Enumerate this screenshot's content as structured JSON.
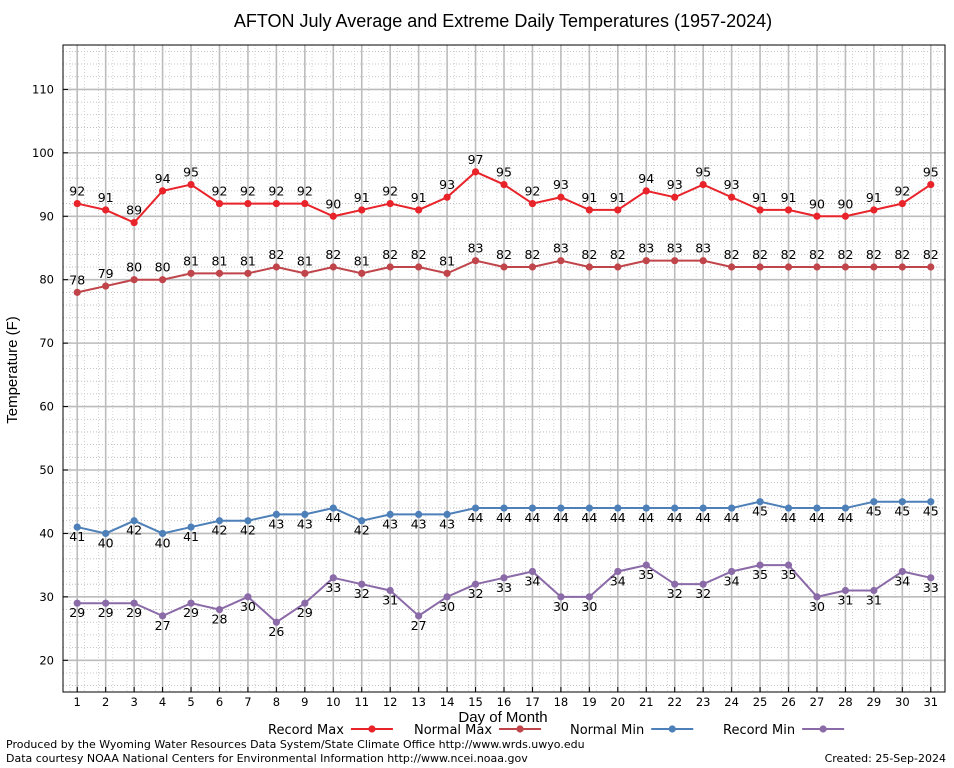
{
  "chart_data": {
    "type": "line",
    "title": "AFTON July Average and Extreme Daily Temperatures (1957-2024)",
    "xlabel": "Day of Month",
    "ylabel": "Temperature (F)",
    "x": [
      1,
      2,
      3,
      4,
      5,
      6,
      7,
      8,
      9,
      10,
      11,
      12,
      13,
      14,
      15,
      16,
      17,
      18,
      19,
      20,
      21,
      22,
      23,
      24,
      25,
      26,
      27,
      28,
      29,
      30,
      31
    ],
    "xlim": [
      0.5,
      31.5
    ],
    "ylim": [
      15,
      117
    ],
    "yticks": [
      20,
      30,
      40,
      50,
      60,
      70,
      80,
      90,
      100,
      110
    ],
    "grid": true,
    "legend_position": "bottom",
    "series": [
      {
        "name": "Record Max",
        "color": "#e8232a",
        "labels": "above",
        "values": [
          92,
          91,
          89,
          94,
          95,
          92,
          92,
          92,
          92,
          90,
          91,
          92,
          91,
          93,
          97,
          95,
          92,
          93,
          91,
          91,
          94,
          93,
          95,
          93,
          91,
          91,
          90,
          90,
          91,
          92,
          95
        ]
      },
      {
        "name": "Normal Max",
        "color": "#c0454b",
        "labels": "above",
        "values": [
          78,
          79,
          80,
          80,
          81,
          81,
          81,
          82,
          81,
          82,
          81,
          82,
          82,
          81,
          83,
          82,
          82,
          83,
          82,
          82,
          83,
          83,
          83,
          82,
          82,
          82,
          82,
          82,
          82,
          82,
          82
        ]
      },
      {
        "name": "Normal Min",
        "color": "#4d7fb8",
        "labels": "below",
        "values": [
          41,
          40,
          42,
          40,
          41,
          42,
          42,
          43,
          43,
          44,
          42,
          43,
          43,
          43,
          44,
          44,
          44,
          44,
          44,
          44,
          44,
          44,
          44,
          44,
          45,
          44,
          44,
          44,
          45,
          45,
          45
        ]
      },
      {
        "name": "Record Min",
        "color": "#8b6aa8",
        "labels": "below",
        "values": [
          29,
          29,
          29,
          27,
          29,
          28,
          30,
          26,
          29,
          33,
          32,
          31,
          27,
          30,
          32,
          33,
          34,
          30,
          30,
          34,
          35,
          32,
          32,
          34,
          35,
          35,
          30,
          31,
          31,
          34,
          33
        ]
      }
    ]
  },
  "footer": {
    "produced_by": "Produced by the Wyoming Water Resources Data System/State Climate Office http://www.wrds.uwyo.edu",
    "courtesy": "Data courtesy NOAA National Centers for Environmental Information http://www.ncei.noaa.gov",
    "created": "Created:  25-Sep-2024"
  }
}
